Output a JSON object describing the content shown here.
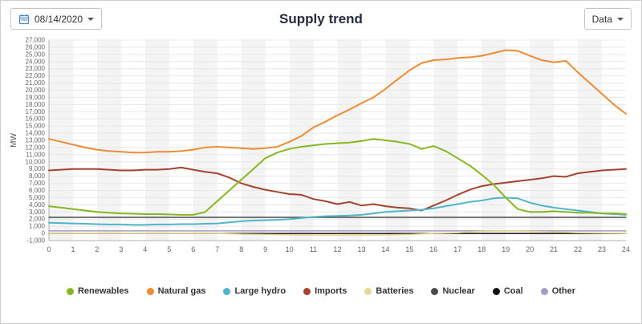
{
  "header": {
    "date_label": "08/14/2020",
    "title": "Supply trend",
    "data_button_label": "Data"
  },
  "chart_data": {
    "type": "line",
    "title": "Supply trend",
    "xlabel": "",
    "ylabel": "MW",
    "xlim": [
      0,
      24
    ],
    "ylim": [
      -1000,
      27000
    ],
    "grid": true,
    "legend_position": "bottom",
    "band_color": "#f4f4f4",
    "x_ticks": [
      0,
      1,
      2,
      3,
      4,
      5,
      6,
      7,
      8,
      9,
      10,
      11,
      12,
      13,
      14,
      15,
      16,
      17,
      18,
      19,
      20,
      21,
      22,
      23,
      24
    ],
    "y_ticks": [
      -1000,
      0,
      1000,
      2000,
      3000,
      4000,
      5000,
      6000,
      7000,
      8000,
      9000,
      10000,
      11000,
      12000,
      13000,
      14000,
      15000,
      16000,
      17000,
      18000,
      19000,
      20000,
      21000,
      22000,
      23000,
      24000,
      25000,
      26000,
      27000
    ],
    "x_step_hours": 0.5,
    "series": [
      {
        "name": "Renewables",
        "color": "#88b622",
        "values": [
          3800,
          3600,
          3400,
          3200,
          3000,
          2900,
          2800,
          2750,
          2700,
          2700,
          2650,
          2600,
          2600,
          3000,
          4500,
          6000,
          7500,
          9000,
          10500,
          11300,
          11800,
          12100,
          12300,
          12500,
          12600,
          12700,
          12900,
          13200,
          13000,
          12800,
          12500,
          11800,
          12200,
          11500,
          10500,
          9500,
          8200,
          6800,
          5000,
          3400,
          3000,
          3000,
          3100,
          3000,
          2900,
          2900,
          2800,
          2800,
          2700
        ]
      },
      {
        "name": "Natural gas",
        "color": "#ef8b33",
        "values": [
          13200,
          12800,
          12400,
          12000,
          11700,
          11500,
          11400,
          11300,
          11300,
          11400,
          11400,
          11500,
          11700,
          12000,
          12100,
          12000,
          11900,
          11800,
          11900,
          12100,
          12800,
          13600,
          14800,
          15600,
          16500,
          17300,
          18200,
          19000,
          20200,
          21500,
          22800,
          23800,
          24200,
          24300,
          24500,
          24600,
          24800,
          25200,
          25600,
          25500,
          24800,
          24200,
          23900,
          24100,
          22500,
          21000,
          19500,
          18000,
          16700
        ]
      },
      {
        "name": "Large hydro",
        "color": "#4fb6c9",
        "values": [
          1500,
          1450,
          1400,
          1350,
          1300,
          1250,
          1250,
          1200,
          1200,
          1250,
          1250,
          1300,
          1300,
          1350,
          1400,
          1550,
          1700,
          1800,
          1850,
          1900,
          2000,
          2150,
          2300,
          2400,
          2450,
          2500,
          2600,
          2800,
          3000,
          3100,
          3200,
          3300,
          3500,
          3800,
          4100,
          4400,
          4600,
          4900,
          5000,
          4900,
          4300,
          3900,
          3600,
          3400,
          3200,
          3000,
          2800,
          2700,
          2600
        ]
      },
      {
        "name": "Imports",
        "color": "#a5432d",
        "values": [
          8800,
          8900,
          9000,
          9000,
          9000,
          8900,
          8800,
          8800,
          8900,
          8900,
          9000,
          9200,
          8900,
          8600,
          8400,
          7800,
          7000,
          6500,
          6100,
          5800,
          5500,
          5400,
          4800,
          4500,
          4100,
          4400,
          3900,
          4100,
          3800,
          3600,
          3500,
          3200,
          3900,
          4600,
          5400,
          6100,
          6600,
          6900,
          7100,
          7300,
          7500,
          7700,
          8000,
          7900,
          8400,
          8600,
          8800,
          8900,
          9000
        ]
      },
      {
        "name": "Batteries",
        "color": "#e7d790",
        "values": [
          0,
          0,
          0,
          0,
          0,
          0,
          0,
          0,
          -100,
          -150,
          -200,
          -250,
          -250,
          -250,
          -200,
          -150,
          0,
          100,
          300,
          400,
          300,
          200,
          100,
          50,
          0
        ]
      },
      {
        "name": "Nuclear",
        "color": "#4a4a4a",
        "values": [
          2250,
          2250
        ]
      },
      {
        "name": "Coal",
        "color": "#111111",
        "values": [
          0,
          0
        ]
      },
      {
        "name": "Other",
        "color": "#a79cc8",
        "values": [
          350,
          350
        ]
      }
    ]
  }
}
